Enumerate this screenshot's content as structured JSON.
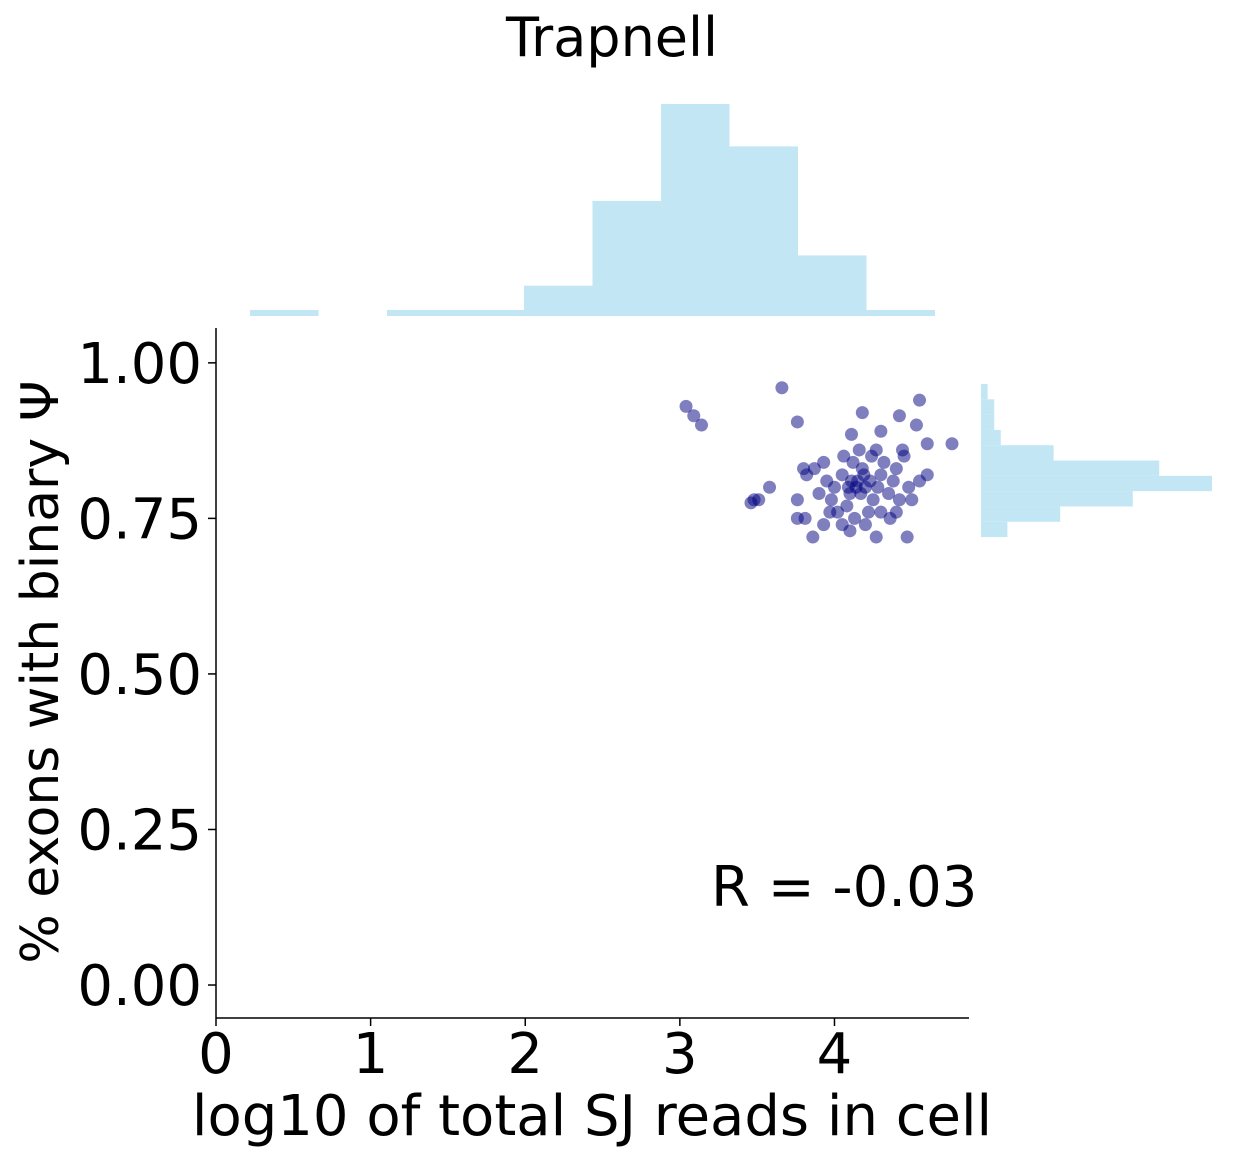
{
  "chart_data": [
    {
      "type": "scatter",
      "title": "Trapnell",
      "x_label": "log10 of total SJ reads in cell",
      "y_label": "% exons with binary Ψ",
      "annotation": "R = -0.03",
      "color": "#000080",
      "x": [
        3.04,
        3.09,
        3.14,
        3.66,
        3.76,
        4.18,
        4.55,
        4.42,
        4.53,
        4.76,
        4.6,
        3.48,
        3.51,
        3.46,
        3.58,
        3.76,
        3.76,
        3.81,
        3.86,
        4.27,
        4.47,
        4.1,
        4.6,
        4.3,
        4.11,
        4.0,
        4.05,
        4.1,
        4.15,
        4.2,
        4.25,
        4.3,
        4.08,
        4.12,
        4.18,
        4.22,
        4.28,
        4.35,
        4.4,
        3.95,
        3.98,
        4.02,
        4.06,
        4.16,
        4.24,
        4.32,
        4.38,
        4.42,
        4.45,
        4.48,
        4.5,
        3.9,
        3.87,
        3.82,
        3.93,
        4.13,
        4.2,
        4.3,
        4.36,
        4.05,
        3.97,
        4.14,
        4.17,
        4.11,
        4.09,
        4.19,
        4.23,
        4.27,
        4.44,
        3.8,
        3.93,
        4.4,
        4.55
      ],
      "y": [
        0.93,
        0.915,
        0.9,
        0.96,
        0.905,
        0.92,
        0.94,
        0.915,
        0.9,
        0.87,
        0.87,
        0.78,
        0.78,
        0.775,
        0.8,
        0.78,
        0.75,
        0.75,
        0.72,
        0.72,
        0.72,
        0.73,
        0.82,
        0.89,
        0.885,
        0.8,
        0.82,
        0.79,
        0.81,
        0.8,
        0.78,
        0.82,
        0.77,
        0.84,
        0.83,
        0.76,
        0.8,
        0.79,
        0.83,
        0.81,
        0.78,
        0.76,
        0.85,
        0.86,
        0.85,
        0.84,
        0.81,
        0.78,
        0.85,
        0.8,
        0.78,
        0.79,
        0.83,
        0.82,
        0.84,
        0.75,
        0.74,
        0.76,
        0.75,
        0.74,
        0.76,
        0.8,
        0.79,
        0.81,
        0.8,
        0.82,
        0.81,
        0.86,
        0.86,
        0.83,
        0.74,
        0.76,
        0.81
      ],
      "xlim": [
        0,
        4.87
      ],
      "ylim": [
        -0.053,
        1.056
      ],
      "xticks": [
        0,
        1,
        2,
        3,
        4
      ],
      "yticks": [
        {
          "value": 0,
          "label": "0.00"
        },
        {
          "value": 0.25,
          "label": "0.25"
        },
        {
          "value": 0.5,
          "label": "0.50"
        },
        {
          "value": 0.75,
          "label": "0.75"
        },
        {
          "value": 1,
          "label": "1.00"
        }
      ]
    },
    {
      "type": "histogram",
      "color": "#c2e6f3",
      "bins": [
        0.22,
        0.663,
        1.106,
        1.549,
        1.992,
        2.435,
        2.878,
        3.321,
        3.764,
        4.207,
        4.65
      ],
      "values": [
        1,
        0,
        1,
        1,
        5,
        19,
        35,
        28,
        10,
        1
      ],
      "xlim": [
        0,
        4.87
      ],
      "ylim": [
        0,
        35
      ]
    },
    {
      "type": "histogram",
      "orientation": "horizontal",
      "color": "#c2e6f3",
      "bins": [
        0.72,
        0.7446,
        0.7692,
        0.7938,
        0.8184,
        0.843,
        0.8676,
        0.8922,
        0.9168,
        0.9414,
        0.966
      ],
      "values": [
        4,
        12,
        23,
        35,
        27,
        11,
        3,
        2,
        2,
        1
      ],
      "xlim": [
        0,
        35
      ],
      "ylim": [
        -0.053,
        1.056
      ]
    }
  ]
}
